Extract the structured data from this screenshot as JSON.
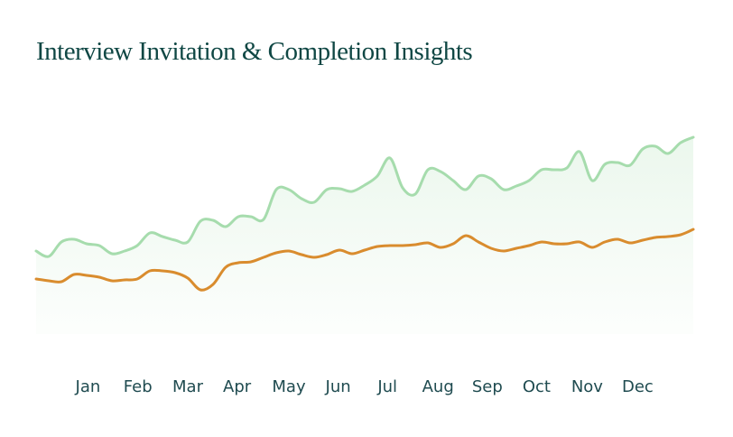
{
  "chart_data": {
    "type": "line",
    "title": "Interview Invitation & Completion Insights",
    "x": [
      0,
      1,
      2,
      3,
      4,
      5,
      6,
      7,
      8,
      9,
      10,
      11,
      12,
      13,
      14,
      15,
      16,
      17,
      18,
      19,
      20,
      21,
      22,
      23,
      24,
      25,
      26,
      27,
      28,
      29,
      30,
      31,
      32,
      33,
      34,
      35,
      36,
      37,
      38,
      39,
      40,
      41,
      42,
      43,
      44,
      45,
      46,
      47,
      48,
      49,
      50,
      51,
      52
    ],
    "xlim": [
      0,
      52
    ],
    "xticks": [
      {
        "value": 4.1,
        "label": "Jan"
      },
      {
        "value": 8.05,
        "label": "Feb"
      },
      {
        "value": 12,
        "label": "Mar"
      },
      {
        "value": 15.9,
        "label": "Apr"
      },
      {
        "value": 20,
        "label": "May"
      },
      {
        "value": 23.9,
        "label": "Jun"
      },
      {
        "value": 27.8,
        "label": "Jul"
      },
      {
        "value": 31.8,
        "label": "Aug"
      },
      {
        "value": 35.7,
        "label": "Sep"
      },
      {
        "value": 39.6,
        "label": "Oct"
      },
      {
        "value": 43.6,
        "label": "Nov"
      },
      {
        "value": 47.6,
        "label": "Dec"
      }
    ],
    "ylim": [
      0,
      240
    ],
    "series": [
      {
        "color": "#a6dcad",
        "values": [
          92,
          86,
          102,
          105,
          100,
          98,
          89,
          92,
          98,
          112,
          108,
          104,
          102,
          125,
          126,
          119,
          130,
          130,
          127,
          160,
          160,
          150,
          146,
          160,
          161,
          158,
          165,
          175,
          195,
          162,
          155,
          182,
          180,
          170,
          160,
          175,
          172,
          160,
          164,
          170,
          182,
          182,
          184,
          202,
          170,
          188,
          190,
          187,
          205,
          208,
          200,
          212,
          218
        ]
      },
      {
        "color": "#d98c2e",
        "values": [
          61,
          59,
          58,
          66,
          65,
          63,
          59,
          60,
          61,
          70,
          70,
          68,
          62,
          49,
          55,
          74,
          79,
          80,
          85,
          90,
          92,
          88,
          85,
          88,
          93,
          89,
          93,
          97,
          98,
          98,
          99,
          101,
          96,
          100,
          109,
          102,
          95,
          92,
          95,
          98,
          102,
          100,
          100,
          102,
          96,
          102,
          105,
          101,
          104,
          107,
          108,
          110,
          116
        ]
      }
    ]
  }
}
